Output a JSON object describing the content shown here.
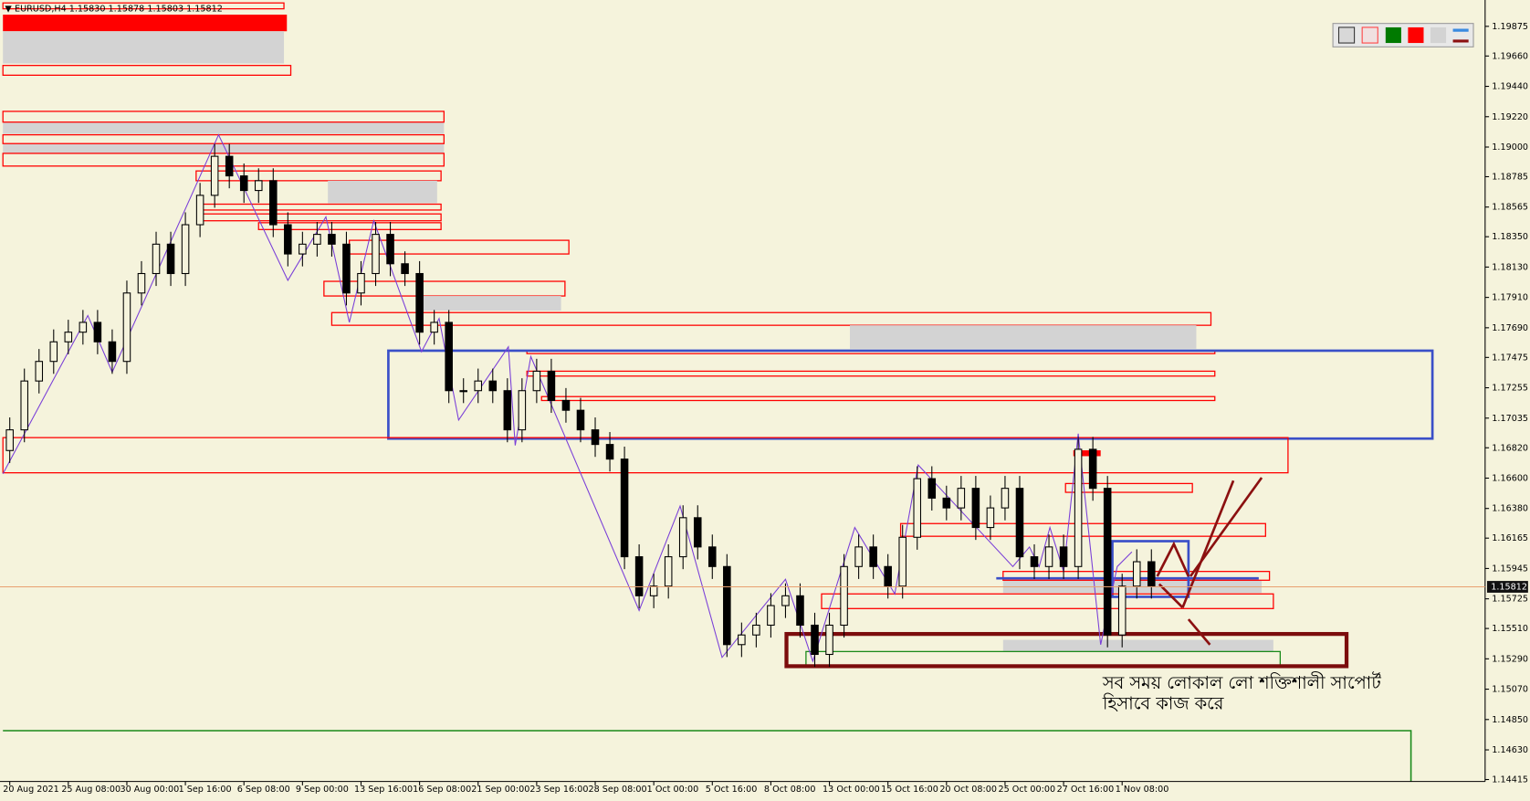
{
  "chart_data": {
    "type": "candlestick",
    "title": "EURUSD,H4  1.15830 1.15878 1.15803 1.15812",
    "annotation": [
      "সব সময় লোকাল লো শক্তিশালী সাপোর্ট",
      "হিসাবে কাজ করে"
    ],
    "categories": [
      "20 Aug 2021",
      null,
      null,
      null,
      "25 Aug 08:00",
      null,
      null,
      null,
      "30 Aug 00:00",
      null,
      null,
      null,
      "1 Sep 16:00",
      null,
      null,
      null,
      "6 Sep 08:00",
      null,
      null,
      null,
      "9 Sep 00:00",
      null,
      null,
      null,
      "13 Sep 16:00",
      null,
      null,
      null,
      "16 Sep 08:00",
      null,
      null,
      null,
      "21 Sep 00:00",
      null,
      null,
      null,
      "23 Sep 16:00",
      null,
      null,
      null,
      "28 Sep 08:00",
      null,
      null,
      null,
      "1 Oct 00:00",
      null,
      null,
      null,
      "5 Oct 16:00",
      null,
      null,
      null,
      "8 Oct 08:00",
      null,
      null,
      null,
      "13 Oct 00:00",
      null,
      null,
      null,
      "15 Oct 16:00",
      null,
      null,
      null,
      "20 Oct 08:00",
      null,
      null,
      null,
      "25 Oct 00:00",
      null,
      null,
      null,
      "27 Oct 16:00",
      null,
      null,
      null,
      "1 Nov 08:00",
      null,
      null
    ],
    "open": [
      1.168,
      1.1695,
      1.17304,
      1.17446,
      1.17588,
      1.17658,
      1.17729,
      1.17588,
      1.17446,
      1.17942,
      1.18083,
      1.18296,
      1.18083,
      1.18437,
      1.1865,
      1.18933,
      1.18791,
      1.18685,
      1.18756,
      1.18437,
      1.18225,
      1.18296,
      1.18367,
      1.18296,
      1.17942,
      1.18083,
      1.18367,
      1.18154,
      1.18083,
      1.17658,
      1.17729,
      1.17234,
      1.17234,
      1.17304,
      1.17234,
      1.1695,
      1.17234,
      1.17375,
      1.17163,
      1.17092,
      1.1695,
      1.16844,
      1.16738,
      1.1603,
      1.15747,
      1.15817,
      1.1603,
      1.16313,
      1.16101,
      1.15959,
      1.15393,
      1.15463,
      1.15534,
      1.15676,
      1.15747,
      1.15534,
      1.15322,
      1.15534,
      1.15959,
      1.16101,
      1.15959,
      1.15817,
      1.16171,
      1.16596,
      1.16455,
      1.16384,
      1.16526,
      1.16242,
      1.16384,
      1.16526,
      1.1603,
      1.15959,
      1.16101,
      1.15959,
      1.16809,
      1.16526,
      1.15463,
      1.15817,
      1.15994
    ],
    "high": [
      1.1704,
      1.17394,
      1.17536,
      1.17678,
      1.17748,
      1.17819,
      1.17819,
      1.17678,
      1.18032,
      1.18173,
      1.18386,
      1.18386,
      1.18527,
      1.1874,
      1.19023,
      1.19023,
      1.18881,
      1.18846,
      1.18846,
      1.18527,
      1.18386,
      1.18457,
      1.18457,
      1.18386,
      1.18173,
      1.18457,
      1.18457,
      1.18244,
      1.18173,
      1.17819,
      1.17819,
      1.17324,
      1.17394,
      1.17394,
      1.17324,
      1.17324,
      1.17465,
      1.17465,
      1.17253,
      1.17182,
      1.1704,
      1.16934,
      1.16828,
      1.1612,
      1.15907,
      1.1612,
      1.16403,
      1.16403,
      1.16191,
      1.16049,
      1.15553,
      1.15624,
      1.15766,
      1.15837,
      1.15837,
      1.15624,
      1.15624,
      1.16049,
      1.16191,
      1.16191,
      1.16049,
      1.16261,
      1.16686,
      1.16686,
      1.16545,
      1.16616,
      1.16616,
      1.16474,
      1.16616,
      1.16616,
      1.1612,
      1.16191,
      1.16191,
      1.16899,
      1.16899,
      1.16616,
      1.15907,
      1.16084,
      1.16084
    ],
    "low": [
      1.1671,
      1.1686,
      1.17214,
      1.17356,
      1.17498,
      1.17568,
      1.17498,
      1.17356,
      1.17356,
      1.17852,
      1.17993,
      1.17993,
      1.17993,
      1.18347,
      1.1856,
      1.18701,
      1.18595,
      1.18595,
      1.18347,
      1.18135,
      1.18135,
      1.18206,
      1.18206,
      1.17852,
      1.17852,
      1.17993,
      1.18064,
      1.17993,
      1.17568,
      1.17568,
      1.17144,
      1.17144,
      1.17144,
      1.17144,
      1.1686,
      1.1686,
      1.17144,
      1.17073,
      1.17002,
      1.1686,
      1.16754,
      1.16648,
      1.1594,
      1.15657,
      1.15657,
      1.15727,
      1.1594,
      1.16011,
      1.15869,
      1.15303,
      1.15303,
      1.15373,
      1.15444,
      1.15586,
      1.15444,
      1.15232,
      1.15232,
      1.15444,
      1.15869,
      1.15869,
      1.15727,
      1.15727,
      1.16081,
      1.16365,
      1.16294,
      1.16294,
      1.16152,
      1.16152,
      1.16294,
      1.1594,
      1.15869,
      1.15869,
      1.15869,
      1.15869,
      1.16436,
      1.15373,
      1.15373,
      1.15727,
      1.15727
    ],
    "close": [
      1.1695,
      1.17304,
      1.17446,
      1.17588,
      1.17658,
      1.17729,
      1.17588,
      1.17446,
      1.17942,
      1.18083,
      1.18296,
      1.18083,
      1.18437,
      1.1865,
      1.18933,
      1.18791,
      1.18685,
      1.18756,
      1.18437,
      1.18225,
      1.18296,
      1.18367,
      1.18296,
      1.17942,
      1.18083,
      1.18367,
      1.18154,
      1.18083,
      1.17658,
      1.17729,
      1.17234,
      1.17234,
      1.17304,
      1.17234,
      1.1695,
      1.17234,
      1.17375,
      1.17163,
      1.17092,
      1.1695,
      1.16844,
      1.16738,
      1.1603,
      1.15747,
      1.15817,
      1.1603,
      1.16313,
      1.16101,
      1.15959,
      1.15393,
      1.15463,
      1.15534,
      1.15676,
      1.15747,
      1.15534,
      1.15322,
      1.15534,
      1.15959,
      1.16101,
      1.15959,
      1.15817,
      1.16171,
      1.16596,
      1.16455,
      1.16384,
      1.16526,
      1.16242,
      1.16384,
      1.16526,
      1.1603,
      1.15959,
      1.16101,
      1.15959,
      1.16809,
      1.16526,
      1.15463,
      1.15817,
      1.15994,
      1.15817
    ],
    "color": "#000000",
    "current_price": {
      "value": 1.15812,
      "label": "1.15812"
    },
    "ylim": [
      1.14401,
      1.20066
    ],
    "yticks": [
      1.19875,
      {
        "value": 1.1966,
        "label": "1.19660"
      },
      {
        "value": 1.1944,
        "label": "1.19440"
      },
      {
        "value": 1.1922,
        "label": "1.19220"
      },
      {
        "value": 1.19,
        "label": "1.19000"
      },
      1.18785,
      1.18565,
      {
        "value": 1.1835,
        "label": "1.18350"
      },
      {
        "value": 1.1813,
        "label": "1.18130"
      },
      {
        "value": 1.1791,
        "label": "1.17910"
      },
      {
        "value": 1.1769,
        "label": "1.17690"
      },
      1.17475,
      1.17255,
      1.17035,
      {
        "value": 1.1682,
        "label": "1.16820"
      },
      {
        "value": 1.166,
        "label": "1.16600"
      },
      {
        "value": 1.1638,
        "label": "1.16380"
      },
      1.16165,
      1.15945,
      1.15725,
      {
        "value": 1.1551,
        "label": "1.15510"
      },
      {
        "value": 1.1529,
        "label": "1.15290"
      },
      {
        "value": 1.1507,
        "label": "1.15070"
      },
      {
        "value": 1.1485,
        "label": "1.14850"
      },
      {
        "value": 1.1463,
        "label": "1.14630"
      },
      1.14415
    ]
  }
}
